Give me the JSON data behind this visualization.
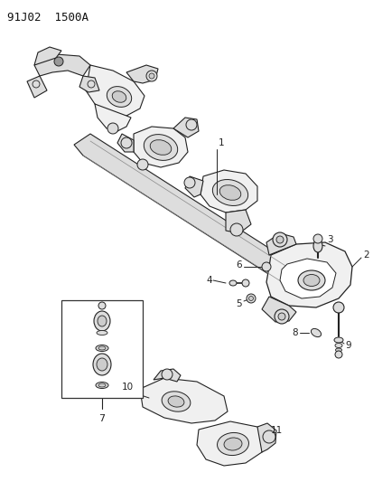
{
  "title": "91J02  1500A",
  "bg_color": "#ffffff",
  "text_color": "#111111",
  "figsize": [
    4.14,
    5.33
  ],
  "dpi": 100,
  "line_color": "#222222",
  "fill_light": "#f0f0f0",
  "fill_mid": "#dddddd",
  "fill_dark": "#cccccc"
}
